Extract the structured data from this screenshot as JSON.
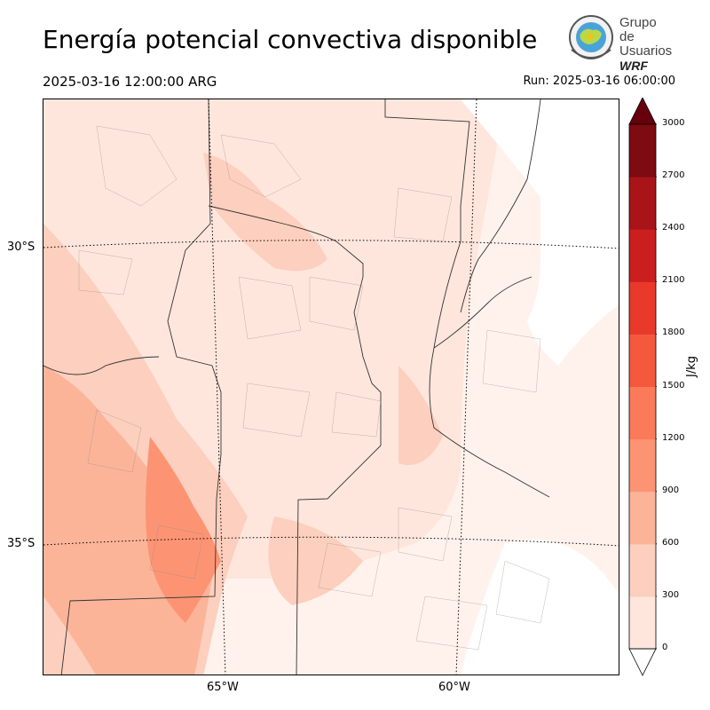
{
  "header": {
    "title": "Energía potencial convectiva disponible",
    "valid_time": "2025-03-16 12:00:00 ARG",
    "run_time": "Run: 2025-03-16 06:00:00"
  },
  "logo": {
    "line1": "Grupo de",
    "line2": "Usuarios",
    "line3": "WRF"
  },
  "map": {
    "lat_labels": [
      "30°S",
      "35°S"
    ],
    "lon_labels": [
      "65°W",
      "60°W"
    ]
  },
  "colorbar": {
    "unit": "J/kg",
    "ticks": [
      "0",
      "300",
      "600",
      "900",
      "1200",
      "1500",
      "1800",
      "2100",
      "2400",
      "2700",
      "3000"
    ],
    "colors": [
      "#fee6dd",
      "#fdcfbe",
      "#fcb499",
      "#fc9474",
      "#fb7a5a",
      "#f4593d",
      "#e8392b",
      "#cb1e1e",
      "#a81418",
      "#7e0a12"
    ],
    "extend_low": "#ffffff",
    "extend_high": "#67000d"
  }
}
